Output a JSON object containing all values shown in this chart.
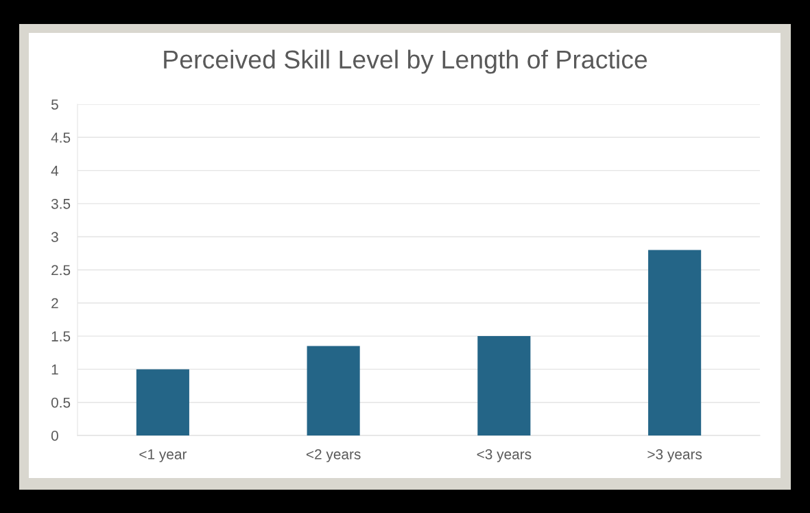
{
  "chart_data": {
    "type": "bar",
    "title": "Perceived Skill Level by Length of Practice",
    "categories": [
      "<1 year",
      "<2 years",
      "<3 years",
      ">3 years"
    ],
    "values": [
      1.0,
      1.35,
      1.5,
      2.8
    ],
    "color": "#246587",
    "ylim": [
      0,
      5
    ],
    "yticks": [
      0,
      0.5,
      1,
      1.5,
      2,
      2.5,
      3,
      3.5,
      4,
      4.5,
      5
    ],
    "grid": "y",
    "legend": false
  }
}
